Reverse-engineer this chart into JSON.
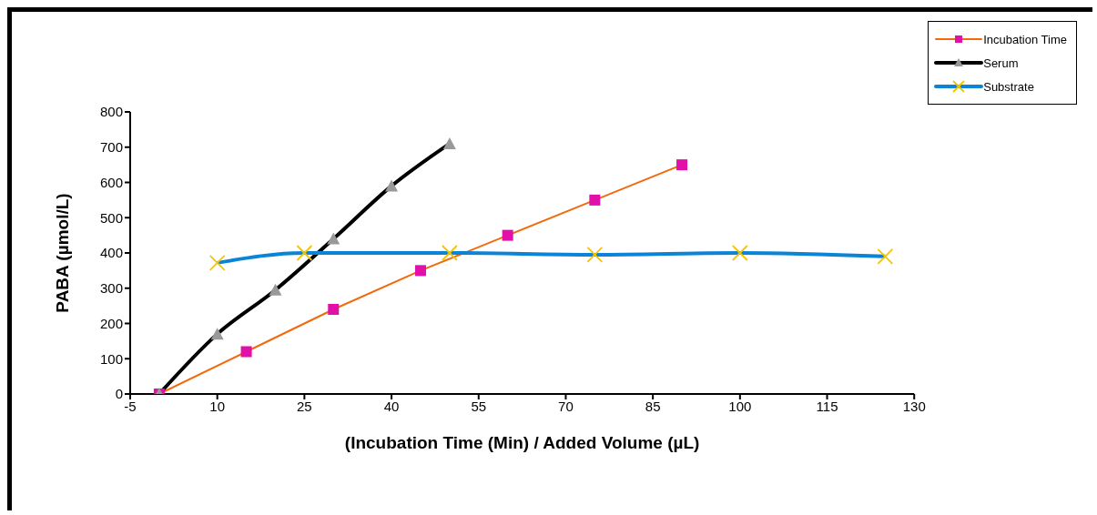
{
  "chart_data": {
    "type": "line",
    "xlabel": "(Incubation Time (Min) / Added Volume (µL)",
    "ylabel": "PABA (µmol/L)",
    "xlim": [
      -5,
      130
    ],
    "xticks": [
      -5,
      10,
      25,
      40,
      55,
      70,
      85,
      100,
      115,
      130
    ],
    "ylim": [
      0,
      800
    ],
    "yticks": [
      0,
      100,
      200,
      300,
      400,
      500,
      600,
      700,
      800
    ],
    "grid": false,
    "legend": "top right",
    "series": [
      {
        "name": "Incubation Time",
        "color": "#f26a0c",
        "colors": [
          "#e010a8",
          "#e010a8",
          "#e010a8",
          "#e010a8",
          "#e010a8",
          "#e010a8",
          "#e010a8"
        ],
        "marker": "square",
        "x": [
          0,
          15,
          30,
          45,
          60,
          75,
          90
        ],
        "values": [
          0,
          120,
          240,
          350,
          450,
          550,
          650
        ]
      },
      {
        "name": "Serum",
        "color": "#000000",
        "colors": [
          "#999999",
          "#999999",
          "#999999",
          "#999999",
          "#999999",
          "#999999"
        ],
        "marker": "triangle",
        "x": [
          0,
          10,
          20,
          30,
          40,
          50
        ],
        "values": [
          0,
          170,
          295,
          440,
          590,
          710
        ]
      },
      {
        "name": "Substrate",
        "color": "#0a84d6",
        "colors": [
          "#f5c400",
          "#f5c400",
          "#f5c400",
          "#f5c400",
          "#f5c400",
          "#f5c400"
        ],
        "marker": "cross",
        "x": [
          10,
          25,
          50,
          75,
          100,
          125
        ],
        "values": [
          372,
          400,
          400,
          395,
          400,
          390
        ]
      }
    ]
  }
}
